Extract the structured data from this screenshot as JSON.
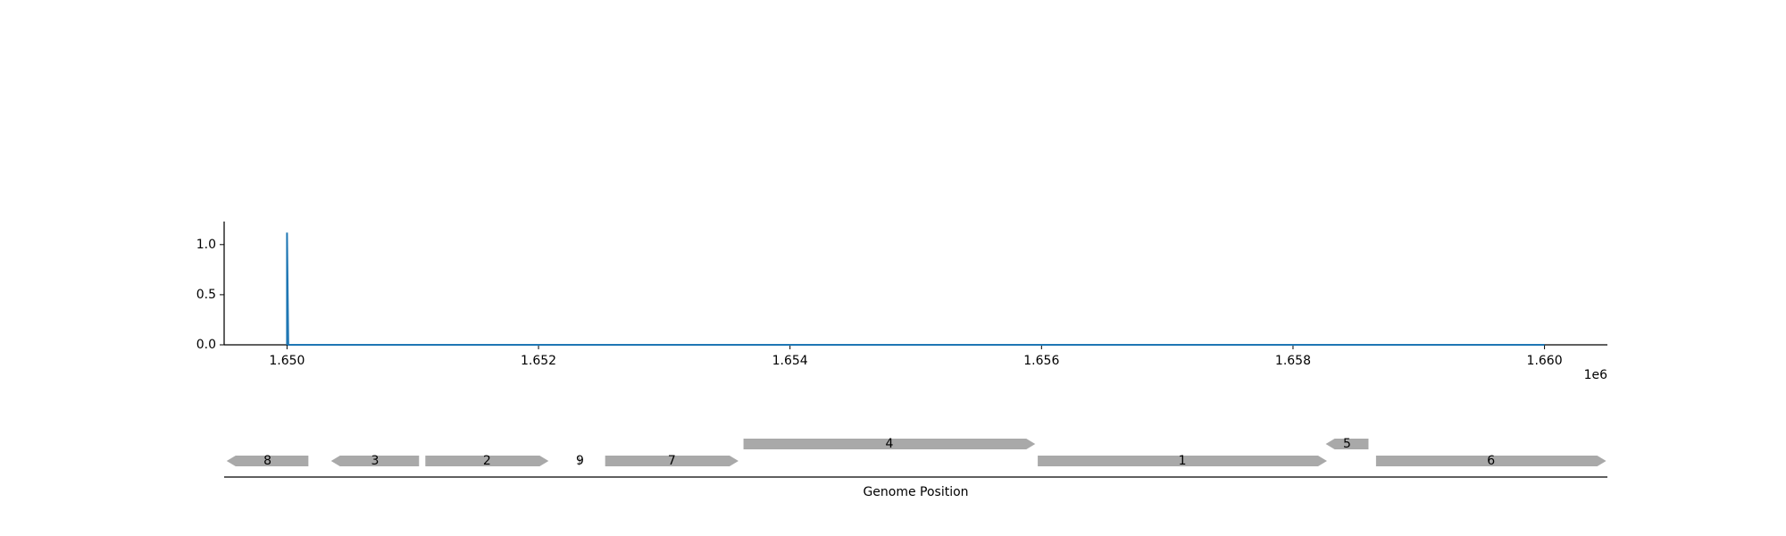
{
  "chart_data": [
    {
      "type": "line",
      "title": "",
      "xlabel": "",
      "ylabel": "",
      "xlim": [
        1649500,
        1660500
      ],
      "ylim": [
        0,
        1.23
      ],
      "x_offset_label": "1e6",
      "x_ticks": [
        1650000,
        1652000,
        1654000,
        1656000,
        1658000,
        1660000
      ],
      "x_tick_labels": [
        "1.650",
        "1.652",
        "1.654",
        "1.656",
        "1.658",
        "1.660"
      ],
      "y_ticks": [
        0.0,
        0.5,
        1.0
      ],
      "y_tick_labels": [
        "0.0",
        "0.5",
        "1.0"
      ],
      "grid": false,
      "series": [
        {
          "color": "#1f77b4",
          "x": [
            1650000,
            1650000,
            1650010,
            1660000
          ],
          "y": [
            0,
            1.12,
            0.0,
            0.0
          ]
        }
      ]
    },
    {
      "type": "gene_map",
      "xlabel": "Genome Position",
      "xlim": [
        1649500,
        1660500
      ],
      "feature_color": "#a9a9a9",
      "features": [
        {
          "label": "8",
          "start": 1649520,
          "end": 1650170,
          "strand": -1,
          "row": 0
        },
        {
          "label": "3",
          "start": 1650350,
          "end": 1651050,
          "strand": -1,
          "row": 0
        },
        {
          "label": "2",
          "start": 1651100,
          "end": 1652080,
          "strand": 1,
          "row": 0
        },
        {
          "label": "9",
          "start": 1652320,
          "end": 1652340,
          "strand": 1,
          "row": 0
        },
        {
          "label": "7",
          "start": 1652530,
          "end": 1653590,
          "strand": 1,
          "row": 0
        },
        {
          "label": "4",
          "start": 1653630,
          "end": 1655950,
          "strand": 1,
          "row": 1
        },
        {
          "label": "1",
          "start": 1655970,
          "end": 1658270,
          "strand": 1,
          "row": 0
        },
        {
          "label": "5",
          "start": 1658260,
          "end": 1658600,
          "strand": -1,
          "row": 1
        },
        {
          "label": "6",
          "start": 1658660,
          "end": 1660490,
          "strand": 1,
          "row": 0
        }
      ]
    }
  ]
}
